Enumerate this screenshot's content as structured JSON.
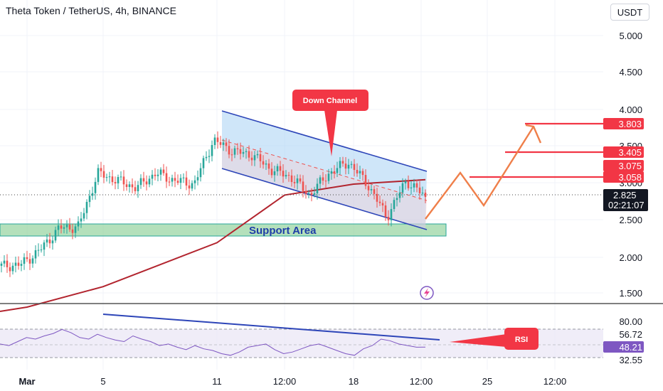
{
  "header": {
    "title": "Theta Token / TetherUS, 4h, BINANCE",
    "currency": "USDT"
  },
  "price_axis": {
    "ticks": [
      "5.000",
      "4.500",
      "4.000",
      "3.500",
      "3.000",
      "2.500",
      "2.000",
      "1.500"
    ],
    "current_price": "2.825",
    "countdown": "02:21:07"
  },
  "levels": [
    {
      "label": "3.803",
      "value": 3.803
    },
    {
      "label": "3.405",
      "value": 3.405
    },
    {
      "label": "3.075",
      "value": 3.075
    },
    {
      "label": "3.058",
      "value": 3.058
    }
  ],
  "annotations": {
    "down_channel": "Down Channel",
    "support_area": "Support Area",
    "rsi": "RSI"
  },
  "rsi_axis": {
    "ticks": [
      "80.00",
      "56.72",
      "48.21",
      "32.55"
    ]
  },
  "time_axis": {
    "ticks": [
      "Mar",
      "5",
      "11",
      "12:00",
      "18",
      "12:00",
      "25",
      "12:00"
    ]
  },
  "colors": {
    "up": "#26a69a",
    "down": "#ef5350",
    "level_line": "#f23645",
    "ma_line": "#b2242e",
    "channel_line": "#2d45b8",
    "channel_fill": "#a7d1f4",
    "support_fill": "#9bd6a4",
    "projection": "#ef7f4a",
    "rsi_line": "#7e57c2",
    "rsi_trend": "#2d45b8",
    "rsi_badge": "#7e57c2"
  },
  "chart_data": [
    {
      "type": "candlestick",
      "title": "Theta Token / TetherUS, 4h, BINANCE",
      "yaxis_unit": "USDT",
      "ylim": [
        1.35,
        5.25
      ],
      "x_ticks": [
        "Mar",
        "5",
        "11",
        "12:00",
        "18",
        "12:00",
        "25",
        "12:00"
      ],
      "ohlc_path_estimate": [
        {
          "t": "Mar 1",
          "close": 1.88
        },
        {
          "t": "Mar 2",
          "close": 1.9
        },
        {
          "t": "Mar 3",
          "close": 2.1
        },
        {
          "t": "Mar 4",
          "close": 2.4
        },
        {
          "t": "Mar 5",
          "close": 2.42
        },
        {
          "t": "Mar 5",
          "close": 3.15
        },
        {
          "t": "Mar 6",
          "close": 3.05
        },
        {
          "t": "Mar 7",
          "close": 2.95
        },
        {
          "t": "Mar 8",
          "close": 3.15
        },
        {
          "t": "Mar 9",
          "close": 3.05
        },
        {
          "t": "Mar 10",
          "close": 3.0
        },
        {
          "t": "Mar 11",
          "close": 3.6
        },
        {
          "t": "Mar 12",
          "close": 3.45
        },
        {
          "t": "Mar 13",
          "close": 3.4
        },
        {
          "t": "Mar 14",
          "close": 3.2
        },
        {
          "t": "Mar 15",
          "close": 3.1
        },
        {
          "t": "Mar 16",
          "close": 2.85
        },
        {
          "t": "Mar 17",
          "close": 3.15
        },
        {
          "t": "Mar 18",
          "close": 3.3
        },
        {
          "t": "Mar 19",
          "close": 3.0
        },
        {
          "t": "Mar 20",
          "close": 2.55
        },
        {
          "t": "Mar 21",
          "close": 3.05
        },
        {
          "t": "Mar 21",
          "close": 2.825
        }
      ],
      "moving_average": [
        {
          "t": "Mar 1",
          "value": 1.32
        },
        {
          "t": "Mar 5",
          "value": 1.6
        },
        {
          "t": "Mar 11",
          "value": 2.2
        },
        {
          "t": "Mar 15",
          "value": 2.85
        },
        {
          "t": "Mar 18",
          "value": 3.0
        },
        {
          "t": "Mar 21",
          "value": 3.06
        }
      ],
      "horizontal_levels": [
        3.803,
        3.405,
        3.075,
        3.058
      ],
      "support_area": [
        2.32,
        2.42
      ],
      "projection_path": [
        2.5,
        3.1,
        2.7,
        3.8
      ],
      "last_price": 2.825
    },
    {
      "type": "line",
      "title": "RSI",
      "ylim": [
        20,
        95
      ],
      "reference_lines": [
        70,
        30
      ],
      "values": [
        52,
        50,
        55,
        60,
        58,
        62,
        65,
        70,
        66,
        60,
        58,
        64,
        60,
        57,
        55,
        62,
        58,
        55,
        50,
        52,
        48,
        45,
        50,
        46,
        44,
        40,
        38,
        42,
        48,
        50,
        52,
        45,
        40,
        42,
        46,
        50,
        52,
        48,
        44,
        40,
        38,
        46,
        50,
        58,
        56,
        52,
        50,
        48,
        48.21
      ],
      "trendline": [
        86,
        56
      ],
      "last_value": 48.21
    }
  ]
}
